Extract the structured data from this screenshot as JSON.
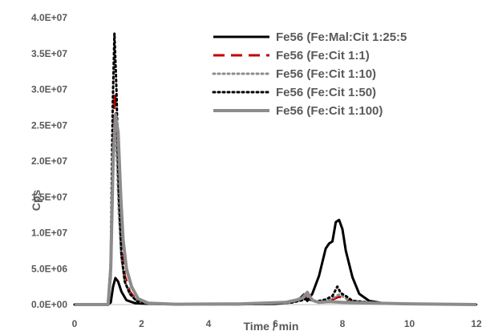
{
  "chart_data": {
    "type": "line",
    "title": "",
    "xlabel": "Time / min",
    "ylabel": "Cps",
    "xlim": [
      0,
      12
    ],
    "ylim": [
      0,
      40000000
    ],
    "x_ticks": [
      0,
      2,
      4,
      6,
      8,
      10,
      12
    ],
    "x_tick_labels": [
      "0",
      "2",
      "4",
      "6",
      "8",
      "10",
      "12"
    ],
    "y_ticks": [
      0,
      5000000,
      10000000,
      15000000,
      20000000,
      25000000,
      30000000,
      35000000,
      40000000
    ],
    "y_tick_labels": [
      "0.0E+00",
      "5.0E+06",
      "1.0E+07",
      "1.5E+07",
      "2.0E+07",
      "2.5E+07",
      "3.0E+07",
      "3.5E+07",
      "4.0E+07"
    ],
    "grid": false,
    "legend_position": "top-right",
    "series": [
      {
        "name": "Fe56 (Fe:Mal:Cit 1:25:5",
        "color": "#000000",
        "dash": "solid",
        "width": 3,
        "x": [
          0,
          1.0,
          1.08,
          1.15,
          1.22,
          1.3,
          1.4,
          1.55,
          1.8,
          2.2,
          3,
          4,
          5,
          6,
          6.5,
          6.7,
          6.85,
          6.95,
          7.1,
          7.3,
          7.5,
          7.6,
          7.7,
          7.8,
          7.9,
          8.0,
          8.1,
          8.3,
          8.5,
          8.8,
          9.2,
          10,
          11,
          12
        ],
        "y": [
          0,
          0,
          300000,
          2500000,
          3700000,
          3200000,
          1800000,
          600000,
          200000,
          100000,
          50000,
          50000,
          50000,
          100000,
          300000,
          700000,
          1400000,
          500000,
          1500000,
          4000000,
          7800000,
          8500000,
          8800000,
          11500000,
          11800000,
          10500000,
          7500000,
          3800000,
          1500000,
          500000,
          200000,
          100000,
          50000,
          0
        ]
      },
      {
        "name": "Fe56 (Fe:Cit 1:1)",
        "color": "#c00000",
        "dash": "dashed",
        "width": 3,
        "x": [
          0,
          1.0,
          1.08,
          1.15,
          1.2,
          1.25,
          1.32,
          1.4,
          1.5,
          1.65,
          1.85,
          2.2,
          3,
          5,
          6.5,
          6.8,
          6.95,
          7.2,
          7.6,
          7.9,
          8.2,
          9,
          10,
          12
        ],
        "y": [
          0,
          0,
          4000000,
          20000000,
          29500000,
          26000000,
          15000000,
          8000000,
          4000000,
          1800000,
          600000,
          150000,
          50000,
          50000,
          300000,
          700000,
          1000000,
          400000,
          500000,
          1100000,
          500000,
          200000,
          100000,
          0
        ]
      },
      {
        "name": "Fe56 (Fe:Cit 1:10)",
        "color": "#8c8c8c",
        "dash": "dotted",
        "width": 3,
        "x": [
          0,
          1.0,
          1.08,
          1.15,
          1.2,
          1.25,
          1.32,
          1.4,
          1.5,
          1.65,
          1.85,
          2.2,
          3,
          5,
          6.5,
          6.8,
          6.95,
          7.2,
          7.6,
          7.9,
          8.2,
          9,
          10,
          12
        ],
        "y": [
          0,
          0,
          4000000,
          18000000,
          24500000,
          22000000,
          13000000,
          6500000,
          3200000,
          1500000,
          500000,
          150000,
          50000,
          50000,
          300000,
          700000,
          1200000,
          400000,
          600000,
          1400000,
          600000,
          200000,
          100000,
          0
        ]
      },
      {
        "name": "Fe56 (Fe:Cit 1:50)",
        "color": "#000000",
        "dash": "dotted",
        "width": 3,
        "x": [
          0,
          1.0,
          1.08,
          1.14,
          1.19,
          1.25,
          1.32,
          1.4,
          1.5,
          1.65,
          1.85,
          2.2,
          3,
          5,
          6.5,
          6.8,
          6.95,
          7.2,
          7.5,
          7.7,
          7.85,
          7.95,
          8.1,
          8.3,
          9,
          10,
          12
        ],
        "y": [
          0,
          0,
          6000000,
          28000000,
          37800000,
          30000000,
          16000000,
          7000000,
          3200000,
          1500000,
          500000,
          150000,
          50000,
          50000,
          300000,
          600000,
          800000,
          400000,
          700000,
          1200000,
          2500000,
          1600000,
          1200000,
          500000,
          200000,
          100000,
          0
        ]
      },
      {
        "name": "Fe56 (Fe:Cit 1:100)",
        "color": "#8c8c8c",
        "dash": "solid",
        "width": 4,
        "x": [
          0,
          1.0,
          1.08,
          1.15,
          1.22,
          1.3,
          1.38,
          1.45,
          1.55,
          1.7,
          1.9,
          2.2,
          3,
          5,
          6.3,
          6.6,
          6.8,
          6.95,
          7.1,
          7.3,
          7.6,
          8,
          9,
          10,
          12
        ],
        "y": [
          0,
          0,
          5000000,
          20000000,
          26500000,
          24000000,
          15000000,
          9000000,
          5000000,
          2500000,
          800000,
          200000,
          50000,
          100000,
          300000,
          600000,
          900000,
          1700000,
          600000,
          300000,
          400000,
          300000,
          200000,
          100000,
          0
        ]
      }
    ]
  }
}
